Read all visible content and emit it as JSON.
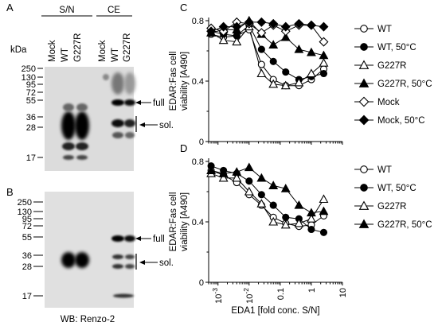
{
  "panels": {
    "A": "A",
    "B": "B",
    "C": "C",
    "D": "D"
  },
  "blot": {
    "group_sn": "S/N",
    "group_ce": "CE",
    "lanes": [
      "Mock",
      "WT",
      "G227R",
      "Mock",
      "WT",
      "G227R"
    ],
    "kda_label": "kDa",
    "markers": [
      "250",
      "130",
      "95",
      "72",
      "55",
      "36",
      "28",
      "17"
    ],
    "full_label": "full",
    "sol_label": "sol.",
    "footer": "WB: Renzo-2"
  },
  "chart_data": [
    {
      "type": "line",
      "panel": "C",
      "ylabel_line1": "EDAR:Fas cell",
      "ylabel_line2": "viability [A490]",
      "xscale": "log",
      "xlim": [
        0.0005,
        10
      ],
      "ylim": [
        0,
        0.8
      ],
      "yticks": [
        "0",
        "0.4",
        "0.8"
      ],
      "grid": false,
      "legend_position": "right",
      "x": [
        0.0006,
        0.0015,
        0.004,
        0.01,
        0.025,
        0.06,
        0.15,
        0.4,
        1,
        2.5
      ],
      "series": [
        {
          "name": "WT",
          "marker": "circle-open",
          "color": "#000000",
          "values": [
            0.71,
            0.69,
            0.7,
            0.74,
            0.51,
            0.41,
            0.37,
            0.37,
            0.41,
            0.48
          ]
        },
        {
          "name": "WT, 50°C",
          "marker": "circle-filled",
          "color": "#000000",
          "values": [
            0.73,
            0.71,
            0.7,
            0.77,
            0.61,
            0.53,
            0.46,
            0.41,
            0.43,
            0.45
          ]
        },
        {
          "name": "G227R",
          "marker": "triangle-open",
          "color": "#000000",
          "values": [
            0.72,
            0.67,
            0.66,
            0.76,
            0.45,
            0.38,
            0.37,
            0.39,
            0.45,
            0.52
          ]
        },
        {
          "name": "G227R, 50°C",
          "marker": "triangle-filled",
          "color": "#000000",
          "values": [
            0.72,
            0.74,
            0.74,
            0.8,
            0.71,
            0.64,
            0.69,
            0.61,
            0.59,
            0.57
          ]
        },
        {
          "name": "Mock",
          "marker": "diamond-open",
          "color": "#000000",
          "values": [
            0.75,
            0.73,
            0.79,
            0.78,
            0.72,
            0.77,
            0.73,
            0.77,
            0.77,
            0.66
          ]
        },
        {
          "name": "Mock, 50°C",
          "marker": "diamond-filled",
          "color": "#000000",
          "values": [
            0.73,
            0.76,
            0.76,
            0.79,
            0.79,
            0.78,
            0.76,
            0.78,
            0.77,
            0.76
          ]
        }
      ]
    },
    {
      "type": "line",
      "panel": "D",
      "ylabel_line1": "EDAR:Fas cell",
      "ylabel_line2": "viability [A490]",
      "xlabel": "EDA1 [fold conc. S/N]",
      "xscale": "log",
      "xlim": [
        0.0005,
        10
      ],
      "ylim": [
        0,
        0.8
      ],
      "yticks": [
        "0",
        "0.4",
        "0.8"
      ],
      "xticks": [
        "10-3",
        "10-2",
        "0.1",
        "1",
        "10"
      ],
      "grid": false,
      "legend_position": "right",
      "x": [
        0.0006,
        0.0015,
        0.004,
        0.01,
        0.025,
        0.06,
        0.15,
        0.4,
        1,
        2.5
      ],
      "series": [
        {
          "name": "WT",
          "marker": "circle-open",
          "color": "#000000",
          "values": [
            0.74,
            0.71,
            0.66,
            0.58,
            0.51,
            0.43,
            0.39,
            0.37,
            0.38,
            0.44
          ]
        },
        {
          "name": "WT, 50°C",
          "marker": "circle-filled",
          "color": "#000000",
          "values": [
            0.77,
            0.74,
            0.72,
            0.67,
            0.58,
            0.51,
            0.43,
            0.42,
            0.35,
            0.33
          ]
        },
        {
          "name": "G227R",
          "marker": "triangle-open",
          "color": "#000000",
          "values": [
            0.72,
            0.69,
            0.69,
            0.6,
            0.52,
            0.4,
            0.38,
            0.39,
            0.42,
            0.55
          ]
        },
        {
          "name": "G227R, 50°C",
          "marker": "triangle-filled",
          "color": "#000000",
          "values": [
            0.74,
            0.72,
            0.73,
            0.76,
            0.69,
            0.64,
            0.62,
            0.51,
            0.46,
            0.47
          ]
        }
      ]
    }
  ]
}
